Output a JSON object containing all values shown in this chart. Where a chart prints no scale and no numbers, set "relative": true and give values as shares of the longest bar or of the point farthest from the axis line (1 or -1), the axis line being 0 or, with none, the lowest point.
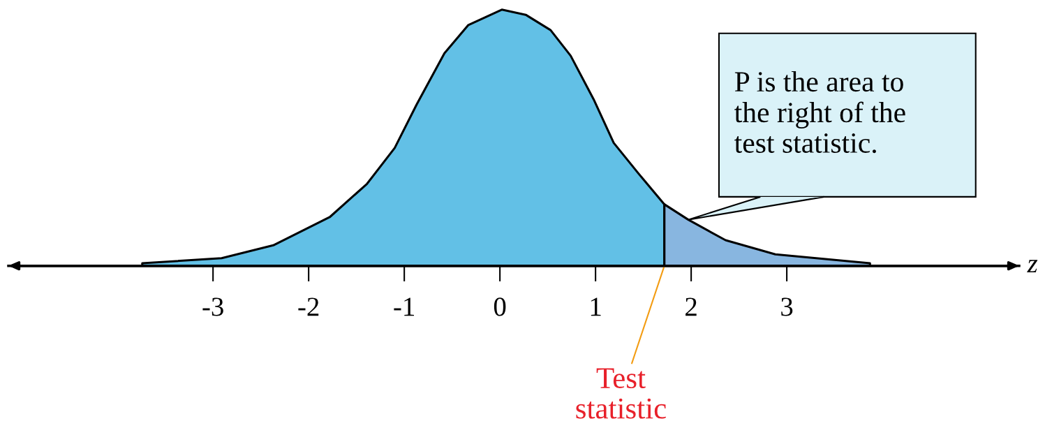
{
  "chart_data": {
    "type": "area",
    "relative": true,
    "xlabel": "z",
    "xlim": [
      -5.14,
      5.43
    ],
    "xticks": [
      -3,
      -2,
      -1,
      0,
      1,
      2,
      3
    ],
    "grid": false,
    "legend": false,
    "tick_labels": "x",
    "series": [
      {
        "color": "#62c0e6",
        "x": [
          -3.74,
          -2.91,
          -2.37,
          -1.78,
          -1.39,
          -1.1,
          -0.87,
          -0.58,
          -0.33,
          0.02,
          0.27,
          0.53,
          0.74,
          0.98,
          1.19,
          1.45,
          1.72
        ],
        "values": [
          0.01,
          0.03,
          0.08,
          0.19,
          0.32,
          0.46,
          0.63,
          0.83,
          0.94,
          1.0,
          0.98,
          0.92,
          0.82,
          0.65,
          0.48,
          0.36,
          0.24
        ]
      },
      {
        "color": "#88b6e0",
        "x": [
          1.72,
          1.97,
          2.36,
          2.88,
          3.87
        ],
        "values": [
          0.24,
          0.18,
          0.1,
          0.045,
          0.01
        ]
      }
    ],
    "annotations": [
      {
        "text": "P is the area to\nthe right of the\ntest statistic.",
        "x": 1.97,
        "y": 0.18
      },
      {
        "text": "Test\nstatistic",
        "x": 1.72,
        "y": 0
      }
    ]
  }
}
